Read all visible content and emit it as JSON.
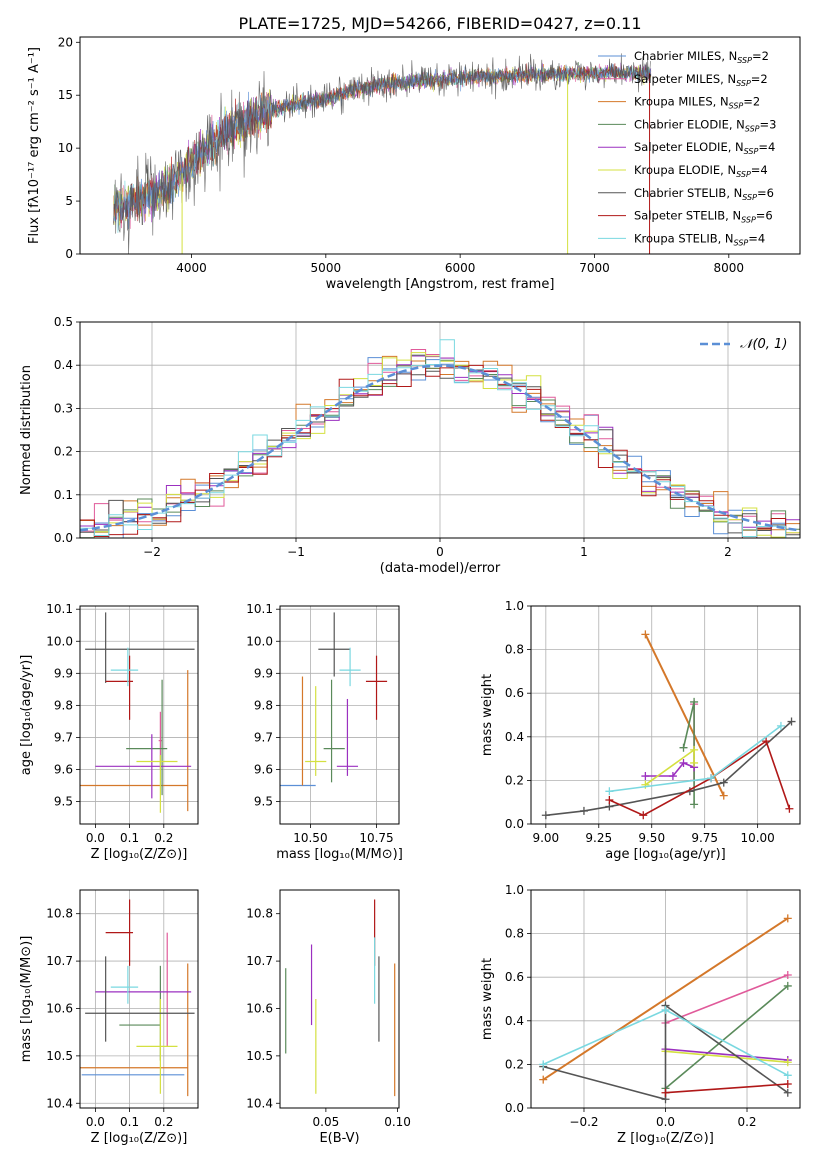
{
  "figure_title": "PLATE=1725, MJD=54266, FIBERID=0427, z=0.11",
  "colors": [
    "#5b8fd6",
    "#e05a9a",
    "#d4782a",
    "#5a8a5a",
    "#9b30c0",
    "#d4e040",
    "#555555",
    "#b01818",
    "#7ad8e0"
  ],
  "chart_data": [
    {
      "type": "line",
      "panel": "spectrum",
      "title": "PLATE=1725, MJD=54266, FIBERID=0427, z=0.11",
      "xlabel": "wavelength [Angstrom, rest frame]",
      "ylabel": "Flux [fλ10⁻¹⁷ erg cm⁻² s⁻¹ A⁻¹]",
      "xlim": [
        3170,
        8530
      ],
      "ylim": [
        0,
        20.5
      ],
      "xticks": [
        4000,
        5000,
        6000,
        7000,
        8000
      ],
      "yticks": [
        0,
        5,
        10,
        15,
        20
      ],
      "legend_position": "right",
      "continuum": [
        [
          3420,
          4.2
        ],
        [
          3600,
          5.0
        ],
        [
          3800,
          6.0
        ],
        [
          4000,
          8.5
        ],
        [
          4200,
          11.0
        ],
        [
          4400,
          12.6
        ],
        [
          4600,
          13.6
        ],
        [
          4800,
          14.2
        ],
        [
          5000,
          14.6
        ],
        [
          5200,
          15.5
        ],
        [
          5400,
          16.0
        ],
        [
          5600,
          16.2
        ],
        [
          5800,
          16.5
        ],
        [
          6000,
          16.6
        ],
        [
          6200,
          16.8
        ],
        [
          6400,
          16.8
        ],
        [
          6600,
          17.0
        ],
        [
          6800,
          17.0
        ],
        [
          7000,
          17.1
        ],
        [
          7200,
          17.1
        ],
        [
          7400,
          17.1
        ]
      ],
      "legend": [
        {
          "label": "Chabrier MILES, N",
          "sub": "SSP",
          "suffix": "=2"
        },
        {
          "label": "Salpeter MILES, N",
          "sub": "SSP",
          "suffix": "=2"
        },
        {
          "label": "Kroupa MILES, N",
          "sub": "SSP",
          "suffix": "=2"
        },
        {
          "label": "Chabrier ELODIE, N",
          "sub": "SSP",
          "suffix": "=3"
        },
        {
          "label": "Salpeter ELODIE, N",
          "sub": "SSP",
          "suffix": "=4"
        },
        {
          "label": "Kroupa ELODIE, N",
          "sub": "SSP",
          "suffix": "=4"
        },
        {
          "label": "Chabrier STELIB, N",
          "sub": "SSP",
          "suffix": "=6"
        },
        {
          "label": "Salpeter STELIB, N",
          "sub": "SSP",
          "suffix": "=6"
        },
        {
          "label": "Kroupa STELIB, N",
          "sub": "SSP",
          "suffix": "=4"
        }
      ]
    },
    {
      "type": "histogram",
      "panel": "residuals",
      "xlabel": "(data-model)/error",
      "ylabel": "Normed distribution",
      "xlim": [
        -2.5,
        2.5
      ],
      "ylim": [
        0,
        0.5
      ],
      "xticks": [
        -2,
        -1,
        0,
        1,
        2
      ],
      "yticks": [
        0.0,
        0.1,
        0.2,
        0.3,
        0.4,
        0.5
      ],
      "grid": true,
      "bin_width": 0.1,
      "bin_start": -2.5,
      "legend_label": "𝒩(0, 1)"
    },
    {
      "type": "scatter",
      "panel": "age_vs_Z",
      "xlabel": "Z [log₁₀(Z/Z⊙)]",
      "ylabel": "age  [log₁₀(age/yr)]",
      "xlim": [
        -0.045,
        0.3
      ],
      "ylim": [
        9.43,
        10.11
      ],
      "xticks": [
        0.0,
        0.1,
        0.2
      ],
      "yticks": [
        9.5,
        9.6,
        9.7,
        9.8,
        9.9,
        10.0,
        10.1
      ],
      "grid": true,
      "points": [
        {
          "c": 1,
          "x": 0.19,
          "y": 9.69,
          "xe": 0.005,
          "ye": 0.09
        },
        {
          "c": 2,
          "x": 0.11,
          "y": 9.55,
          "xe": 0.16,
          "ye": 0.0
        },
        {
          "c": 2,
          "x": 0.27,
          "y": 9.69,
          "xe": 0.0,
          "ye": 0.22
        },
        {
          "c": 3,
          "x": 0.15,
          "y": 9.665,
          "xe": 0.06,
          "ye": 0.0
        },
        {
          "c": 3,
          "x": 0.195,
          "y": 9.7,
          "xe": 0.0,
          "ye": 0.18
        },
        {
          "c": 4,
          "x": 0.14,
          "y": 9.61,
          "xe": 0.14,
          "ye": 0.0
        },
        {
          "c": 4,
          "x": 0.165,
          "y": 9.61,
          "xe": 0.0,
          "ye": 0.1
        },
        {
          "c": 5,
          "x": 0.18,
          "y": 9.625,
          "xe": 0.06,
          "ye": 0.0
        },
        {
          "c": 5,
          "x": 0.19,
          "y": 9.555,
          "xe": 0.0,
          "ye": 0.09
        },
        {
          "c": 6,
          "x": 0.13,
          "y": 9.975,
          "xe": 0.16,
          "ye": 0.0
        },
        {
          "c": 6,
          "x": 0.03,
          "y": 9.98,
          "xe": 0.0,
          "ye": 0.11
        },
        {
          "c": 7,
          "x": 0.07,
          "y": 9.875,
          "xe": 0.04,
          "ye": 0.0
        },
        {
          "c": 7,
          "x": 0.1,
          "y": 9.855,
          "xe": 0.0,
          "ye": 0.1
        },
        {
          "c": 8,
          "x": 0.085,
          "y": 9.91,
          "xe": 0.04,
          "ye": 0.0
        },
        {
          "c": 8,
          "x": 0.095,
          "y": 9.92,
          "xe": 0.0,
          "ye": 0.06
        }
      ]
    },
    {
      "type": "scatter",
      "panel": "age_vs_mass",
      "xlabel": "mass [log₁₀(M/M⊙)]",
      "ylabel": "",
      "xlim": [
        10.385,
        10.835
      ],
      "ylim": [
        9.43,
        10.11
      ],
      "xticks": [
        10.5,
        10.75
      ],
      "yticks": [
        9.5,
        9.6,
        9.7,
        9.8,
        9.9,
        10.0,
        10.1
      ],
      "grid": true,
      "points": [
        {
          "c": 0,
          "x": 10.44,
          "y": 9.55,
          "xe": 0.08,
          "ye": 0.0
        },
        {
          "c": 2,
          "x": 10.47,
          "y": 9.72,
          "xe": 0.0,
          "ye": 0.17
        },
        {
          "c": 3,
          "x": 10.59,
          "y": 9.665,
          "xe": 0.04,
          "ye": 0.0
        },
        {
          "c": 3,
          "x": 10.58,
          "y": 9.72,
          "xe": 0.0,
          "ye": 0.16
        },
        {
          "c": 4,
          "x": 10.64,
          "y": 9.61,
          "xe": 0.04,
          "ye": 0.0
        },
        {
          "c": 4,
          "x": 10.64,
          "y": 9.7,
          "xe": 0.0,
          "ye": 0.12
        },
        {
          "c": 5,
          "x": 10.52,
          "y": 9.625,
          "xe": 0.04,
          "ye": 0.0
        },
        {
          "c": 5,
          "x": 10.52,
          "y": 9.72,
          "xe": 0.0,
          "ye": 0.14
        },
        {
          "c": 6,
          "x": 10.59,
          "y": 9.975,
          "xe": 0.06,
          "ye": 0.0
        },
        {
          "c": 6,
          "x": 10.59,
          "y": 9.99,
          "xe": 0.0,
          "ye": 0.1
        },
        {
          "c": 7,
          "x": 10.75,
          "y": 9.875,
          "xe": 0.04,
          "ye": 0.0
        },
        {
          "c": 7,
          "x": 10.75,
          "y": 9.855,
          "xe": 0.0,
          "ye": 0.1
        },
        {
          "c": 8,
          "x": 10.65,
          "y": 9.91,
          "xe": 0.04,
          "ye": 0.0
        },
        {
          "c": 8,
          "x": 10.65,
          "y": 9.92,
          "xe": 0.0,
          "ye": 0.06
        }
      ]
    },
    {
      "type": "line",
      "panel": "mass_weight_vs_age",
      "xlabel": "age  [log₁₀(age/yr)]",
      "ylabel": "mass weight",
      "xlim": [
        8.93,
        10.2
      ],
      "ylim": [
        0,
        1
      ],
      "xticks": [
        9.0,
        9.25,
        9.5,
        9.75,
        10.0
      ],
      "yticks": [
        0.0,
        0.2,
        0.4,
        0.6,
        0.8,
        1.0
      ],
      "grid": true,
      "series": [
        {
          "c": 1,
          "points": [
            [
              9.7,
              0.55
            ],
            [
              9.7,
              0.2
            ]
          ]
        },
        {
          "c": 2,
          "points": [
            [
              9.47,
              0.87
            ],
            [
              9.84,
              0.13
            ]
          ]
        },
        {
          "c": 3,
          "points": [
            [
              9.65,
              0.35
            ],
            [
              9.7,
              0.56
            ],
            [
              9.7,
              0.09
            ]
          ]
        },
        {
          "c": 4,
          "points": [
            [
              9.47,
              0.22
            ],
            [
              9.6,
              0.22
            ],
            [
              9.65,
              0.28
            ],
            [
              9.7,
              0.26
            ]
          ]
        },
        {
          "c": 5,
          "points": [
            [
              9.47,
              0.18
            ],
            [
              9.7,
              0.34
            ],
            [
              9.7,
              0.28
            ]
          ]
        },
        {
          "c": 6,
          "points": [
            [
              9.0,
              0.04
            ],
            [
              9.18,
              0.06
            ],
            [
              9.3,
              0.08
            ],
            [
              9.68,
              0.15
            ],
            [
              9.84,
              0.19
            ],
            [
              10.16,
              0.47
            ]
          ]
        },
        {
          "c": 7,
          "points": [
            [
              9.3,
              0.11
            ],
            [
              9.46,
              0.04
            ],
            [
              9.78,
              0.21
            ],
            [
              10.04,
              0.38
            ],
            [
              10.15,
              0.07
            ]
          ]
        },
        {
          "c": 8,
          "points": [
            [
              9.3,
              0.15
            ],
            [
              9.78,
              0.21
            ],
            [
              10.11,
              0.45
            ]
          ]
        }
      ]
    },
    {
      "type": "scatter",
      "panel": "mass_vs_Z",
      "xlabel": "Z [log₁₀(Z/Z⊙)]",
      "ylabel": "mass [log₁₀(M/M⊙)]",
      "xlim": [
        -0.045,
        0.3
      ],
      "ylim": [
        10.39,
        10.85
      ],
      "xticks": [
        0.0,
        0.1,
        0.2
      ],
      "yticks": [
        10.4,
        10.5,
        10.6,
        10.7,
        10.8
      ],
      "grid": true,
      "points": [
        {
          "c": 0,
          "x": 0.11,
          "y": 10.46,
          "xe": 0.15,
          "ye": 0.0
        },
        {
          "c": 1,
          "x": 0.21,
          "y": 10.64,
          "xe": 0.0,
          "ye": 0.12
        },
        {
          "c": 2,
          "x": 0.11,
          "y": 10.475,
          "xe": 0.16,
          "ye": 0.0
        },
        {
          "c": 2,
          "x": 0.27,
          "y": 10.555,
          "xe": 0.0,
          "ye": 0.14
        },
        {
          "c": 3,
          "x": 0.13,
          "y": 10.565,
          "xe": 0.06,
          "ye": 0.0
        },
        {
          "c": 3,
          "x": 0.19,
          "y": 10.59,
          "xe": 0.0,
          "ye": 0.1
        },
        {
          "c": 4,
          "x": 0.14,
          "y": 10.635,
          "xe": 0.14,
          "ye": 0.0
        },
        {
          "c": 5,
          "x": 0.18,
          "y": 10.52,
          "xe": 0.06,
          "ye": 0.0
        },
        {
          "c": 5,
          "x": 0.19,
          "y": 10.52,
          "xe": 0.0,
          "ye": 0.1
        },
        {
          "c": 6,
          "x": 0.13,
          "y": 10.59,
          "xe": 0.16,
          "ye": 0.0
        },
        {
          "c": 6,
          "x": 0.03,
          "y": 10.62,
          "xe": 0.0,
          "ye": 0.09
        },
        {
          "c": 7,
          "x": 0.07,
          "y": 10.76,
          "xe": 0.04,
          "ye": 0.0
        },
        {
          "c": 7,
          "x": 0.1,
          "y": 10.76,
          "xe": 0.0,
          "ye": 0.07
        },
        {
          "c": 8,
          "x": 0.085,
          "y": 10.645,
          "xe": 0.04,
          "ye": 0.0
        },
        {
          "c": 8,
          "x": 0.095,
          "y": 10.65,
          "xe": 0.0,
          "ye": 0.04
        }
      ]
    },
    {
      "type": "scatter",
      "panel": "mass_vs_EBV",
      "xlabel": "E(B-V)",
      "ylabel": "",
      "xlim": [
        0.018,
        0.101
      ],
      "ylim": [
        10.39,
        10.85
      ],
      "xticks": [
        0.05,
        0.1
      ],
      "yticks": [
        10.4,
        10.5,
        10.6,
        10.7,
        10.8
      ],
      "grid": false,
      "points": [
        {
          "c": 3,
          "x": 0.022,
          "y": 10.595,
          "xe": 0.0,
          "ye": 0.09
        },
        {
          "c": 4,
          "x": 0.04,
          "y": 10.65,
          "xe": 0.0,
          "ye": 0.085
        },
        {
          "c": 5,
          "x": 0.043,
          "y": 10.52,
          "xe": 0.0,
          "ye": 0.1
        },
        {
          "c": 6,
          "x": 0.087,
          "y": 10.62,
          "xe": 0.0,
          "ye": 0.09
        },
        {
          "c": 7,
          "x": 0.084,
          "y": 10.76,
          "xe": 0.0,
          "ye": 0.07
        },
        {
          "c": 8,
          "x": 0.084,
          "y": 10.68,
          "xe": 0.0,
          "ye": 0.07
        },
        {
          "c": 2,
          "x": 0.098,
          "y": 10.555,
          "xe": 0.0,
          "ye": 0.14
        }
      ]
    },
    {
      "type": "line",
      "panel": "mass_weight_vs_Z",
      "xlabel": "Z [log₁₀(Z/Z⊙)]",
      "ylabel": "mass weight",
      "xlim": [
        -0.33,
        0.33
      ],
      "ylim": [
        0,
        1
      ],
      "xticks": [
        -0.2,
        0.0,
        0.2
      ],
      "yticks": [
        0.0,
        0.2,
        0.4,
        0.6,
        0.8,
        1.0
      ],
      "grid": true,
      "series": [
        {
          "c": 1,
          "points": [
            [
              0.0,
              0.39
            ],
            [
              0.3,
              0.61
            ]
          ]
        },
        {
          "c": 2,
          "points": [
            [
              -0.3,
              0.13
            ],
            [
              0.3,
              0.87
            ]
          ]
        },
        {
          "c": 3,
          "points": [
            [
              0.0,
              0.09
            ],
            [
              0.3,
              0.56
            ]
          ]
        },
        {
          "c": 4,
          "points": [
            [
              0.0,
              0.27
            ],
            [
              0.3,
              0.22
            ]
          ]
        },
        {
          "c": 5,
          "points": [
            [
              0.0,
              0.26
            ],
            [
              0.3,
              0.21
            ]
          ]
        },
        {
          "c": 6,
          "points": [
            [
              -0.3,
              0.19
            ],
            [
              0.0,
              0.04
            ],
            [
              0.0,
              0.47
            ],
            [
              0.3,
              0.07
            ]
          ]
        },
        {
          "c": 7,
          "points": [
            [
              0.0,
              0.07
            ],
            [
              0.3,
              0.11
            ]
          ]
        },
        {
          "c": 8,
          "points": [
            [
              -0.3,
              0.2
            ],
            [
              0.0,
              0.45
            ],
            [
              0.3,
              0.15
            ]
          ]
        }
      ]
    }
  ]
}
